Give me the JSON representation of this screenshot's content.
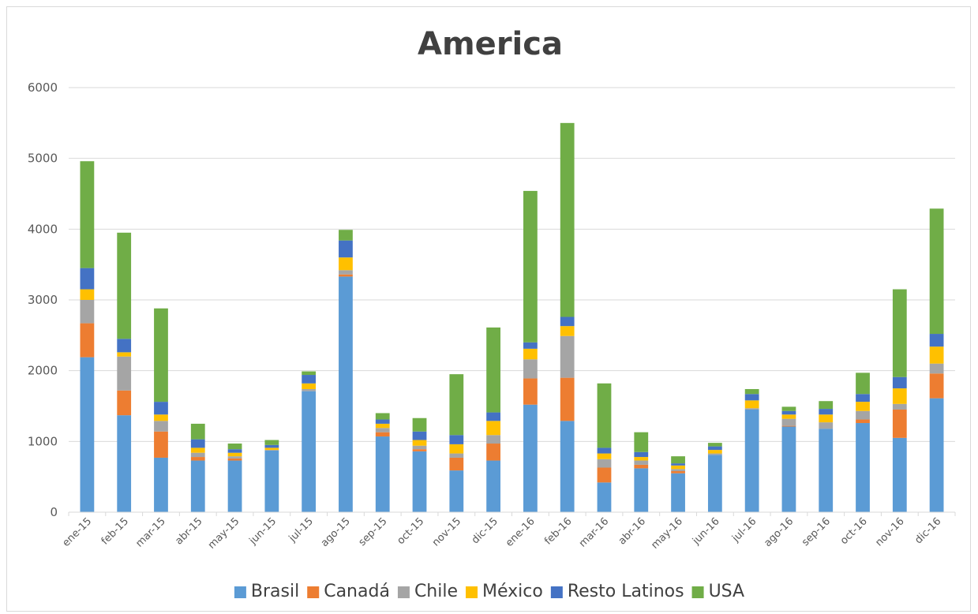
{
  "chart_data": {
    "type": "bar",
    "stacked": true,
    "title": "America",
    "xlabel": "",
    "ylabel": "",
    "ylim": [
      0,
      6000
    ],
    "yticks": [
      0,
      1000,
      2000,
      3000,
      4000,
      5000,
      6000
    ],
    "grid": true,
    "legend_position": "bottom",
    "categories": [
      "ene-15",
      "feb-15",
      "mar-15",
      "abr-15",
      "may-15",
      "jun-15",
      "jul-15",
      "ago-15",
      "sep-15",
      "oct-15",
      "nov-15",
      "dic-15",
      "ene-16",
      "feb-16",
      "mar-16",
      "abr-16",
      "may-16",
      "jun-16",
      "jul-16",
      "ago-16",
      "sep-16",
      "oct-16",
      "nov-16",
      "dic-16"
    ],
    "series": [
      {
        "name": "Brasil",
        "color": "#5b9bd5",
        "values": [
          2190,
          1370,
          770,
          730,
          730,
          870,
          1710,
          3330,
          1070,
          860,
          590,
          730,
          1520,
          1290,
          420,
          620,
          550,
          810,
          1450,
          1210,
          1180,
          1260,
          1050,
          1610
        ]
      },
      {
        "name": "Canadá",
        "color": "#ed7d31",
        "values": [
          480,
          350,
          370,
          50,
          30,
          0,
          0,
          30,
          60,
          30,
          180,
          240,
          370,
          610,
          210,
          50,
          30,
          0,
          0,
          10,
          0,
          50,
          400,
          350
        ]
      },
      {
        "name": "Chile",
        "color": "#a5a5a5",
        "values": [
          330,
          480,
          150,
          60,
          30,
          10,
          30,
          60,
          60,
          50,
          60,
          120,
          270,
          590,
          120,
          60,
          30,
          20,
          20,
          100,
          90,
          120,
          80,
          140
        ]
      },
      {
        "name": "México",
        "color": "#ffc000",
        "values": [
          150,
          60,
          90,
          70,
          50,
          30,
          80,
          180,
          60,
          80,
          130,
          200,
          150,
          140,
          80,
          50,
          50,
          50,
          110,
          60,
          110,
          130,
          220,
          240
        ]
      },
      {
        "name": "Resto Latinos",
        "color": "#4472c4",
        "values": [
          300,
          190,
          180,
          120,
          50,
          40,
          120,
          240,
          60,
          120,
          130,
          120,
          90,
          130,
          80,
          70,
          30,
          50,
          90,
          50,
          80,
          110,
          160,
          180
        ]
      },
      {
        "name": "USA",
        "color": "#70ad47",
        "values": [
          1510,
          1500,
          1320,
          220,
          80,
          70,
          50,
          150,
          90,
          190,
          860,
          1200,
          2140,
          2740,
          910,
          280,
          100,
          50,
          70,
          60,
          110,
          300,
          1240,
          1770
        ]
      }
    ]
  }
}
